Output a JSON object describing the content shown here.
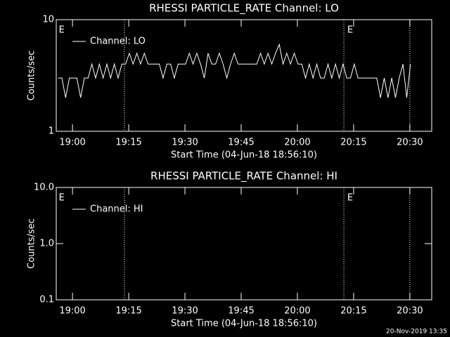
{
  "footer": "20-Nov-2019 13:35",
  "chart_data": [
    {
      "type": "line",
      "title": "RHESSI PARTICLE_RATE Channel: LO",
      "xlabel": "Start Time (04-Jun-18 18:56:10)",
      "ylabel": "Counts/sec",
      "log_y": true,
      "ylim": [
        1,
        10
      ],
      "yticks": [
        1,
        10
      ],
      "xlim": [
        -30,
        5980
      ],
      "xticks": [
        {
          "value": 230,
          "label": "19:00"
        },
        {
          "value": 1130,
          "label": "19:15"
        },
        {
          "value": 2030,
          "label": "19:30"
        },
        {
          "value": 2930,
          "label": "19:45"
        },
        {
          "value": 3830,
          "label": "20:00"
        },
        {
          "value": 4730,
          "label": "20:15"
        },
        {
          "value": 5630,
          "label": "20:30"
        }
      ],
      "vlines": [
        1062,
        4574,
        5630
      ],
      "annotations": [
        {
          "text": "E",
          "x": 0
        },
        {
          "text": "E",
          "x": 4617
        }
      ],
      "legend": "top-left",
      "x": [
        0,
        60,
        120,
        180,
        240,
        300,
        360,
        420,
        480,
        540,
        600,
        660,
        720,
        780,
        840,
        900,
        960,
        1020,
        1080,
        1140,
        1200,
        1260,
        1320,
        1380,
        1440,
        1500,
        1560,
        1620,
        1680,
        1740,
        1800,
        1860,
        1920,
        1980,
        2040,
        2100,
        2160,
        2220,
        2280,
        2340,
        2400,
        2460,
        2520,
        2580,
        2640,
        2700,
        2760,
        2820,
        2880,
        2940,
        3000,
        3060,
        3120,
        3180,
        3240,
        3300,
        3360,
        3420,
        3480,
        3540,
        3600,
        3660,
        3720,
        3780,
        3840,
        3900,
        3960,
        4020,
        4080,
        4140,
        4200,
        4260,
        4320,
        4380,
        4440,
        4500,
        4560,
        4620,
        4680,
        4740,
        4800,
        4860,
        4920,
        4980,
        5040,
        5100,
        5160,
        5220,
        5280,
        5340,
        5400,
        5460,
        5520,
        5580,
        5640
      ],
      "series": [
        {
          "name": "Channel: LO",
          "color": "#ffffff",
          "values": [
            3,
            3,
            2,
            3,
            3,
            3,
            2,
            3,
            3,
            4,
            3,
            4,
            3,
            4,
            3,
            4,
            3,
            4,
            4,
            5,
            4,
            5,
            4,
            5,
            4,
            4,
            4,
            4,
            3,
            4,
            4,
            3,
            4,
            4,
            4,
            5,
            4,
            5,
            4,
            3,
            5,
            4,
            4,
            5,
            4,
            3,
            4,
            5,
            4,
            4,
            4,
            4,
            4,
            4,
            5,
            4,
            5,
            4,
            5,
            6,
            4,
            5,
            4,
            5,
            4,
            4,
            3,
            4,
            3,
            4,
            3,
            3,
            4,
            3,
            4,
            3,
            4,
            3,
            3,
            4,
            3,
            3,
            3,
            3,
            3,
            3,
            2,
            3,
            2,
            3,
            2,
            3,
            4,
            2,
            4
          ]
        }
      ]
    },
    {
      "type": "line",
      "title": "RHESSI PARTICLE_RATE Channel: HI",
      "xlabel": "Start Time (04-Jun-18 18:56:10)",
      "ylabel": "Counts/sec",
      "log_y": true,
      "ylim": [
        0.1,
        10
      ],
      "yticks": [
        {
          "value": 0.1,
          "label": "0.1"
        },
        {
          "value": 1,
          "label": "1.0"
        },
        {
          "value": 10,
          "label": "10.0"
        }
      ],
      "xlim": [
        -30,
        5980
      ],
      "xticks": [
        {
          "value": 230,
          "label": "19:00"
        },
        {
          "value": 1130,
          "label": "19:15"
        },
        {
          "value": 2030,
          "label": "19:30"
        },
        {
          "value": 2930,
          "label": "19:45"
        },
        {
          "value": 3830,
          "label": "20:00"
        },
        {
          "value": 4730,
          "label": "20:15"
        },
        {
          "value": 5630,
          "label": "20:30"
        }
      ],
      "vlines": [
        1062,
        4574,
        5630
      ],
      "annotations": [
        {
          "text": "E",
          "x": 0
        },
        {
          "text": "E",
          "x": 4617
        }
      ],
      "legend": "top-left",
      "x": [],
      "series": [
        {
          "name": "Channel: HI",
          "color": "#ffffff",
          "values": []
        }
      ]
    }
  ]
}
